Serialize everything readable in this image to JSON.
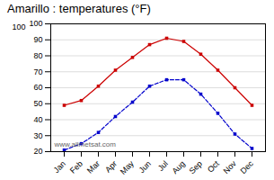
{
  "chart_data": {
    "type": "line",
    "title": "Amarillo : temperatures (°F)",
    "categories": [
      "Jan",
      "Feb",
      "Mar",
      "Apr",
      "May",
      "Jun",
      "Jul",
      "Aug",
      "Sep",
      "Oct",
      "Nov",
      "Dec"
    ],
    "series": [
      {
        "color": "#cc0000",
        "values": [
          49,
          52,
          61,
          71,
          79,
          87,
          91,
          89,
          81,
          71,
          60,
          49
        ],
        "marker": "square",
        "line_style": "solid"
      },
      {
        "color": "#0000cc",
        "values": [
          21,
          25,
          32,
          42,
          51,
          61,
          65,
          65,
          56,
          44,
          31,
          22
        ],
        "marker": "square",
        "line_style": "dashed"
      }
    ],
    "ylim": [
      20,
      100
    ],
    "yticks": [
      20,
      30,
      40,
      50,
      60,
      70,
      80,
      90,
      100
    ],
    "grid": true,
    "annotations": [
      "100",
      "www.allmetsat.com"
    ]
  }
}
